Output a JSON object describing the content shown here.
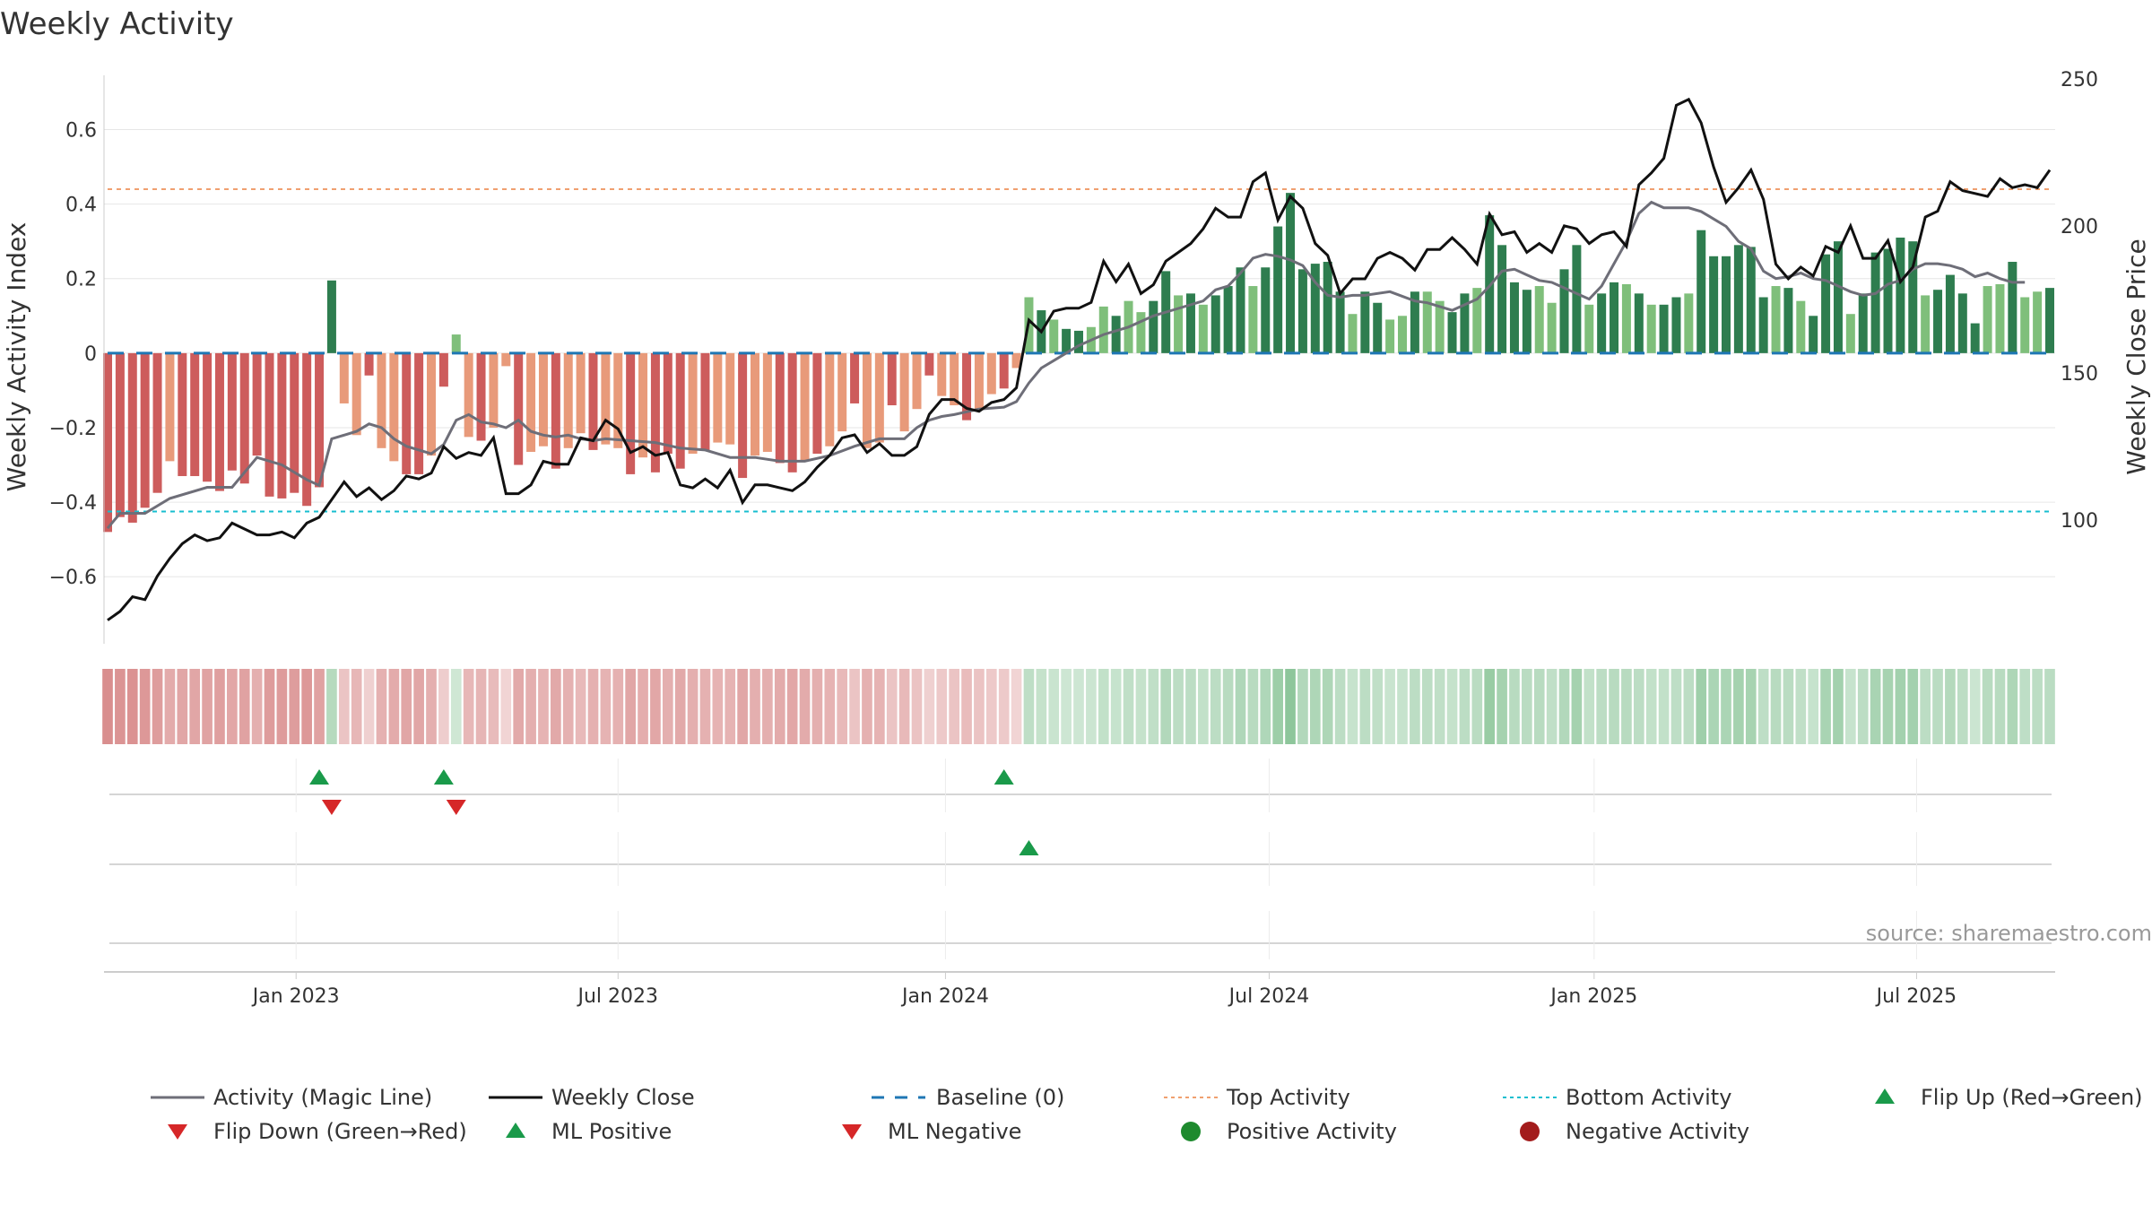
{
  "chart_data": {
    "type": "bar",
    "title": "Weekly Activity",
    "ylabel": "Weekly Activity Index",
    "y2label": "Weekly Close Price",
    "xlabel": "",
    "source": "source: sharemaestro.com",
    "ylim": [
      -0.78,
      0.76
    ],
    "y2lim": [
      58,
      253
    ],
    "yticks": [
      0.6,
      0.4,
      0.2,
      0,
      -0.2,
      -0.4,
      -0.6
    ],
    "ytick_labels": [
      "0.6",
      "0.4",
      "0.2",
      "0",
      "−0.2",
      "−0.4",
      "−0.6"
    ],
    "y2ticks": [
      250,
      200,
      150,
      100
    ],
    "y2tick_labels": [
      "250",
      "200",
      "150",
      "100"
    ],
    "x_start_week": 0,
    "x_end_week": 156,
    "xticks": [
      {
        "week": 15.14,
        "label": "Jan 2023"
      },
      {
        "week": 41.0,
        "label": "Jul 2023"
      },
      {
        "week": 67.3,
        "label": "Jan 2024"
      },
      {
        "week": 93.3,
        "label": "Jul 2024"
      },
      {
        "week": 119.4,
        "label": "Jan 2025"
      },
      {
        "week": 145.3,
        "label": "Jul 2025"
      }
    ],
    "top_activity": 0.44,
    "bottom_activity": -0.425,
    "baseline": 0,
    "activity_values": [
      -0.48,
      -0.44,
      -0.455,
      -0.415,
      -0.375,
      -0.29,
      -0.33,
      -0.33,
      -0.345,
      -0.37,
      -0.315,
      -0.35,
      -0.275,
      -0.385,
      -0.39,
      -0.375,
      -0.41,
      -0.36,
      0.195,
      -0.135,
      -0.22,
      -0.06,
      -0.255,
      -0.29,
      -0.325,
      -0.325,
      -0.275,
      -0.09,
      0.05,
      -0.225,
      -0.235,
      -0.2,
      -0.035,
      -0.3,
      -0.265,
      -0.25,
      -0.31,
      -0.255,
      -0.215,
      -0.26,
      -0.245,
      -0.255,
      -0.325,
      -0.28,
      -0.32,
      -0.27,
      -0.31,
      -0.27,
      -0.26,
      -0.24,
      -0.245,
      -0.335,
      -0.275,
      -0.265,
      -0.295,
      -0.32,
      -0.29,
      -0.27,
      -0.25,
      -0.21,
      -0.135,
      -0.255,
      -0.24,
      -0.14,
      -0.21,
      -0.15,
      -0.06,
      -0.115,
      -0.14,
      -0.18,
      -0.15,
      -0.11,
      -0.095,
      -0.04,
      0.15,
      0.115,
      0.09,
      0.065,
      0.06,
      0.07,
      0.125,
      0.1,
      0.14,
      0.11,
      0.14,
      0.22,
      0.155,
      0.16,
      0.13,
      0.155,
      0.18,
      0.23,
      0.18,
      0.23,
      0.34,
      0.43,
      0.225,
      0.24,
      0.245,
      0.165,
      0.105,
      0.165,
      0.135,
      0.09,
      0.1,
      0.165,
      0.165,
      0.14,
      0.11,
      0.16,
      0.175,
      0.37,
      0.29,
      0.19,
      0.17,
      0.18,
      0.135,
      0.225,
      0.29,
      0.13,
      0.16,
      0.19,
      0.185,
      0.16,
      0.13,
      0.13,
      0.15,
      0.16,
      0.33,
      0.26,
      0.26,
      0.29,
      0.285,
      0.15,
      0.18,
      0.175,
      0.14,
      0.1,
      0.265,
      0.3,
      0.105,
      0.16,
      0.27,
      0.28,
      0.31,
      0.3,
      0.155,
      0.17,
      0.21,
      0.16,
      0.08,
      0.18,
      0.185,
      0.245,
      0.15,
      0.165,
      0.175
    ],
    "magic_line": [
      [
        0,
        -0.47
      ],
      [
        1,
        -0.43
      ],
      [
        3,
        -0.43
      ],
      [
        5,
        -0.39
      ],
      [
        8,
        -0.36
      ],
      [
        10,
        -0.36
      ],
      [
        12,
        -0.28
      ],
      [
        14,
        -0.3
      ],
      [
        16,
        -0.34
      ],
      [
        17,
        -0.355
      ],
      [
        18,
        -0.23
      ],
      [
        19,
        -0.22
      ],
      [
        20,
        -0.21
      ],
      [
        21,
        -0.19
      ],
      [
        22,
        -0.2
      ],
      [
        23,
        -0.23
      ],
      [
        24,
        -0.25
      ],
      [
        26,
        -0.27
      ],
      [
        27,
        -0.245
      ],
      [
        28,
        -0.18
      ],
      [
        29,
        -0.165
      ],
      [
        30,
        -0.185
      ],
      [
        31,
        -0.19
      ],
      [
        32,
        -0.2
      ],
      [
        33,
        -0.18
      ],
      [
        34,
        -0.21
      ],
      [
        35,
        -0.22
      ],
      [
        36,
        -0.225
      ],
      [
        37,
        -0.22
      ],
      [
        38,
        -0.23
      ],
      [
        39,
        -0.235
      ],
      [
        40,
        -0.23
      ],
      [
        42,
        -0.235
      ],
      [
        44,
        -0.24
      ],
      [
        46,
        -0.255
      ],
      [
        48,
        -0.26
      ],
      [
        50,
        -0.28
      ],
      [
        52,
        -0.28
      ],
      [
        54,
        -0.29
      ],
      [
        56,
        -0.29
      ],
      [
        58,
        -0.275
      ],
      [
        60,
        -0.25
      ],
      [
        62,
        -0.23
      ],
      [
        64,
        -0.23
      ],
      [
        65,
        -0.2
      ],
      [
        66,
        -0.18
      ],
      [
        67,
        -0.17
      ],
      [
        68,
        -0.165
      ],
      [
        70,
        -0.15
      ],
      [
        72,
        -0.145
      ],
      [
        73,
        -0.13
      ],
      [
        74,
        -0.08
      ],
      [
        75,
        -0.04
      ],
      [
        76,
        -0.02
      ],
      [
        78,
        0.02
      ],
      [
        80,
        0.05
      ],
      [
        82,
        0.07
      ],
      [
        84,
        0.1
      ],
      [
        86,
        0.12
      ],
      [
        88,
        0.14
      ],
      [
        89,
        0.17
      ],
      [
        90,
        0.18
      ],
      [
        91,
        0.215
      ],
      [
        92,
        0.255
      ],
      [
        93,
        0.265
      ],
      [
        94,
        0.26
      ],
      [
        95,
        0.25
      ],
      [
        96,
        0.235
      ],
      [
        97,
        0.19
      ],
      [
        98,
        0.155
      ],
      [
        99,
        0.15
      ],
      [
        100,
        0.155
      ],
      [
        101,
        0.155
      ],
      [
        103,
        0.165
      ],
      [
        105,
        0.14
      ],
      [
        106,
        0.135
      ],
      [
        107,
        0.125
      ],
      [
        108,
        0.115
      ],
      [
        110,
        0.145
      ],
      [
        111,
        0.18
      ],
      [
        112,
        0.22
      ],
      [
        113,
        0.225
      ],
      [
        114,
        0.21
      ],
      [
        115,
        0.195
      ],
      [
        116,
        0.19
      ],
      [
        117,
        0.175
      ],
      [
        118,
        0.16
      ],
      [
        119,
        0.145
      ],
      [
        120,
        0.18
      ],
      [
        121,
        0.24
      ],
      [
        122,
        0.3
      ],
      [
        123,
        0.375
      ],
      [
        124,
        0.405
      ],
      [
        125,
        0.39
      ],
      [
        126,
        0.39
      ],
      [
        127,
        0.39
      ],
      [
        128,
        0.38
      ],
      [
        129,
        0.36
      ],
      [
        130,
        0.34
      ],
      [
        131,
        0.3
      ],
      [
        132,
        0.28
      ],
      [
        133,
        0.22
      ],
      [
        134,
        0.2
      ],
      [
        135,
        0.205
      ],
      [
        136,
        0.215
      ],
      [
        137,
        0.2
      ],
      [
        138,
        0.195
      ],
      [
        139,
        0.18
      ],
      [
        140,
        0.165
      ],
      [
        141,
        0.155
      ],
      [
        142,
        0.16
      ],
      [
        143,
        0.185
      ],
      [
        144,
        0.195
      ],
      [
        145,
        0.225
      ],
      [
        146,
        0.24
      ],
      [
        147,
        0.24
      ],
      [
        148,
        0.235
      ],
      [
        149,
        0.225
      ],
      [
        150,
        0.205
      ],
      [
        151,
        0.215
      ],
      [
        152,
        0.2
      ],
      [
        153,
        0.19
      ],
      [
        154,
        0.19
      ]
    ],
    "weekly_close": [
      [
        0,
        66
      ],
      [
        1,
        69
      ],
      [
        2,
        74
      ],
      [
        3,
        73
      ],
      [
        4,
        81
      ],
      [
        5,
        87
      ],
      [
        6,
        92
      ],
      [
        7,
        95
      ],
      [
        8,
        93
      ],
      [
        9,
        94
      ],
      [
        10,
        99
      ],
      [
        11,
        97
      ],
      [
        12,
        95
      ],
      [
        13,
        95
      ],
      [
        14,
        96
      ],
      [
        15,
        94
      ],
      [
        16,
        99
      ],
      [
        17,
        101
      ],
      [
        18,
        107
      ],
      [
        19,
        113
      ],
      [
        20,
        108
      ],
      [
        21,
        111
      ],
      [
        22,
        107
      ],
      [
        23,
        110
      ],
      [
        24,
        115
      ],
      [
        25,
        114
      ],
      [
        26,
        116
      ],
      [
        27,
        125
      ],
      [
        28,
        121
      ],
      [
        29,
        123
      ],
      [
        30,
        122
      ],
      [
        31,
        128
      ],
      [
        32,
        109
      ],
      [
        33,
        109
      ],
      [
        34,
        112
      ],
      [
        35,
        120
      ],
      [
        36,
        119
      ],
      [
        37,
        119
      ],
      [
        38,
        128
      ],
      [
        39,
        127
      ],
      [
        40,
        134
      ],
      [
        41,
        131
      ],
      [
        42,
        123
      ],
      [
        43,
        125
      ],
      [
        44,
        122
      ],
      [
        45,
        123
      ],
      [
        46,
        112
      ],
      [
        47,
        111
      ],
      [
        48,
        114
      ],
      [
        49,
        111
      ],
      [
        50,
        117
      ],
      [
        51,
        106
      ],
      [
        52,
        112
      ],
      [
        53,
        112
      ],
      [
        54,
        111
      ],
      [
        55,
        110
      ],
      [
        56,
        113
      ],
      [
        57,
        118
      ],
      [
        58,
        122
      ],
      [
        59,
        128
      ],
      [
        60,
        129
      ],
      [
        61,
        123
      ],
      [
        62,
        126
      ],
      [
        63,
        122
      ],
      [
        64,
        122
      ],
      [
        65,
        125
      ],
      [
        66,
        136
      ],
      [
        67,
        141
      ],
      [
        68,
        141
      ],
      [
        69,
        138
      ],
      [
        70,
        137
      ],
      [
        71,
        140
      ],
      [
        72,
        141
      ],
      [
        73,
        145
      ],
      [
        74,
        168
      ],
      [
        75,
        164
      ],
      [
        76,
        171
      ],
      [
        77,
        172
      ],
      [
        78,
        172
      ],
      [
        79,
        174
      ],
      [
        80,
        188
      ],
      [
        81,
        181
      ],
      [
        82,
        187
      ],
      [
        83,
        177
      ],
      [
        84,
        180
      ],
      [
        85,
        188
      ],
      [
        86,
        191
      ],
      [
        87,
        194
      ],
      [
        88,
        199
      ],
      [
        89,
        206
      ],
      [
        90,
        203
      ],
      [
        91,
        203
      ],
      [
        92,
        215
      ],
      [
        93,
        218
      ],
      [
        94,
        202
      ],
      [
        95,
        210
      ],
      [
        96,
        206
      ],
      [
        97,
        194
      ],
      [
        98,
        190
      ],
      [
        99,
        177
      ],
      [
        100,
        182
      ],
      [
        101,
        182
      ],
      [
        102,
        189
      ],
      [
        103,
        191
      ],
      [
        104,
        189
      ],
      [
        105,
        185
      ],
      [
        106,
        192
      ],
      [
        107,
        192
      ],
      [
        108,
        196
      ],
      [
        109,
        192
      ],
      [
        110,
        187
      ],
      [
        111,
        204
      ],
      [
        112,
        197
      ],
      [
        113,
        198
      ],
      [
        114,
        191
      ],
      [
        115,
        194
      ],
      [
        116,
        191
      ],
      [
        117,
        200
      ],
      [
        118,
        199
      ],
      [
        119,
        194
      ],
      [
        120,
        197
      ],
      [
        121,
        198
      ],
      [
        122,
        193
      ],
      [
        123,
        214
      ],
      [
        124,
        218
      ],
      [
        125,
        223
      ],
      [
        126,
        241
      ],
      [
        127,
        243
      ],
      [
        128,
        235
      ],
      [
        129,
        220
      ],
      [
        130,
        208
      ],
      [
        131,
        213
      ],
      [
        132,
        219
      ],
      [
        133,
        209
      ],
      [
        134,
        187
      ],
      [
        135,
        182
      ],
      [
        136,
        186
      ],
      [
        137,
        183
      ],
      [
        138,
        193
      ],
      [
        139,
        191
      ],
      [
        140,
        200
      ],
      [
        141,
        189
      ],
      [
        142,
        189
      ],
      [
        143,
        195
      ],
      [
        144,
        181
      ],
      [
        145,
        186
      ],
      [
        146,
        203
      ],
      [
        147,
        205
      ],
      [
        148,
        215
      ],
      [
        149,
        212
      ],
      [
        150,
        211
      ],
      [
        151,
        210
      ],
      [
        152,
        216
      ],
      [
        153,
        213
      ],
      [
        154,
        214
      ],
      [
        155,
        213
      ],
      [
        156,
        219
      ]
    ],
    "flips": {
      "flip_up_weeks": [
        17,
        27,
        72
      ],
      "flip_down_weeks": [
        18,
        28
      ],
      "ml_positive_weeks": [
        74
      ],
      "ml_negative_weeks": []
    },
    "legend": [
      {
        "label": "Activity (Magic Line)",
        "symbol": "line",
        "color": "#6e6e78"
      },
      {
        "label": "Weekly Close",
        "symbol": "line",
        "color": "#111111"
      },
      {
        "label": "Baseline (0)",
        "symbol": "dashed",
        "color": "#1f77b4"
      },
      {
        "label": "Top Activity",
        "symbol": "dotted",
        "color": "#f0a070"
      },
      {
        "label": "Bottom Activity",
        "symbol": "dotted",
        "color": "#17becf"
      },
      {
        "label": "Flip Up (Red→Green)",
        "symbol": "tri-up",
        "color": "#1a9a4a"
      },
      {
        "label": "Flip Down (Green→Red)",
        "symbol": "tri-down",
        "color": "#d62728"
      },
      {
        "label": "ML Positive",
        "symbol": "tri-up",
        "color": "#1a9a4a"
      },
      {
        "label": "ML Negative",
        "symbol": "tri-down",
        "color": "#d62728"
      },
      {
        "label": "Positive Activity",
        "symbol": "dot",
        "color": "#1e8a2e"
      },
      {
        "label": "Negative Activity",
        "symbol": "dot",
        "color": "#a31c1c"
      }
    ],
    "colors": {
      "pos_strong": "#2e7d4f",
      "pos_light": "#7fbf7b",
      "neg_strong": "#cd5c5c",
      "neg_light": "#e89a7a",
      "magic_line": "#6e6e78",
      "close": "#111111",
      "baseline": "#1f77b4",
      "top": "#f0a070",
      "bottom": "#17becf",
      "grid": "#e6e6e6",
      "axis": "#cccccc"
    }
  }
}
